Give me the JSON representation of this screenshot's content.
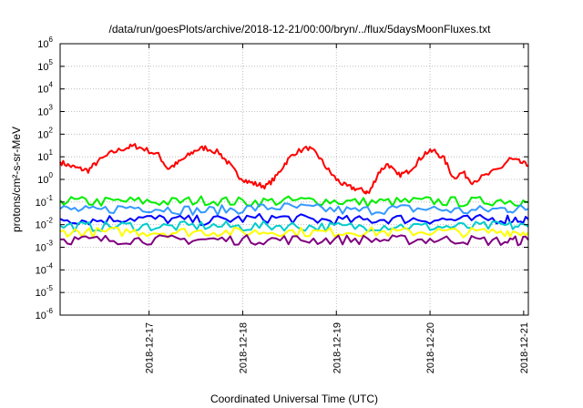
{
  "chart_data": {
    "type": "line",
    "title": "/data/run/goesPlots/archive/2018-12-21/00:00/bryn/../flux/5daysMoonFluxes.txt",
    "xlabel": "Coordinated Universal Time (UTC)",
    "ylabel": "protons/cm²-s-sr-MeV",
    "y_scale": "log",
    "ylim": [
      1e-06,
      1000000.0
    ],
    "xlim_days": [
      16.05,
      21.05
    ],
    "x_ticks": [
      {
        "day": 17,
        "label": "2018-12-17"
      },
      {
        "day": 18,
        "label": "2018-12-18"
      },
      {
        "day": 19,
        "label": "2018-12-19"
      },
      {
        "day": 20,
        "label": "2018-12-20"
      },
      {
        "day": 21,
        "label": "2018-12-21"
      }
    ],
    "y_ticks": [
      {
        "base": "10",
        "exp": "-6"
      },
      {
        "base": "10",
        "exp": "-5"
      },
      {
        "base": "10",
        "exp": "-4"
      },
      {
        "base": "10",
        "exp": "-3"
      },
      {
        "base": "10",
        "exp": "-2"
      },
      {
        "base": "10",
        "exp": "-1"
      },
      {
        "base": "10",
        "exp": "0"
      },
      {
        "base": "10",
        "exp": "1"
      },
      {
        "base": "10",
        "exp": "2"
      },
      {
        "base": "10",
        "exp": "3"
      },
      {
        "base": "10",
        "exp": "4"
      },
      {
        "base": "10",
        "exp": "5"
      },
      {
        "base": "10",
        "exp": "6"
      }
    ],
    "grid": true,
    "series": [
      {
        "color": "#ff0000",
        "x": [
          16.05,
          16.15,
          16.25,
          16.35,
          16.45,
          16.6,
          16.75,
          16.85,
          16.95,
          17.1,
          17.2,
          17.3,
          17.4,
          17.5,
          17.6,
          17.75,
          17.85,
          17.95,
          18.05,
          18.15,
          18.25,
          18.35,
          18.45,
          18.55,
          18.7,
          18.8,
          18.9,
          19.0,
          19.1,
          19.2,
          19.3,
          19.35,
          19.45,
          19.55,
          19.65,
          19.75,
          19.85,
          19.95,
          20.05,
          20.15,
          20.25,
          20.35,
          20.45,
          20.6,
          20.75,
          20.85,
          20.95,
          21.05
        ],
        "values": [
          6,
          4,
          3,
          2.5,
          6,
          15,
          25,
          30,
          22,
          12,
          3,
          5,
          10,
          20,
          25,
          15,
          5,
          1.5,
          0.8,
          0.6,
          0.5,
          1.2,
          5,
          15,
          25,
          12,
          3,
          1,
          0.5,
          0.4,
          0.3,
          0.25,
          2,
          5,
          1.5,
          2,
          5,
          15,
          18,
          8,
          1.2,
          2,
          0.8,
          1.5,
          3,
          8,
          6,
          4
        ]
      },
      {
        "color": "#00ee00",
        "x": [
          16.05,
          16.4,
          16.8,
          17.2,
          17.6,
          18.0,
          18.4,
          18.8,
          19.2,
          19.6,
          20.0,
          20.4,
          20.8,
          21.05
        ],
        "values": [
          0.12,
          0.1,
          0.11,
          0.1,
          0.12,
          0.1,
          0.11,
          0.12,
          0.1,
          0.1,
          0.11,
          0.1,
          0.12,
          0.1
        ]
      },
      {
        "color": "#3399ff",
        "x": [
          16.05,
          16.4,
          16.8,
          17.2,
          17.6,
          18.0,
          18.4,
          18.8,
          19.2,
          19.6,
          20.0,
          20.4,
          20.8,
          21.05
        ],
        "values": [
          0.05,
          0.04,
          0.06,
          0.05,
          0.04,
          0.05,
          0.06,
          0.05,
          0.04,
          0.05,
          0.05,
          0.04,
          0.05,
          0.05
        ]
      },
      {
        "color": "#0000ff",
        "x": [
          16.05,
          16.4,
          16.8,
          17.2,
          17.6,
          18.0,
          18.4,
          18.8,
          19.2,
          19.6,
          20.0,
          20.4,
          20.8,
          21.05
        ],
        "values": [
          0.018,
          0.015,
          0.02,
          0.017,
          0.015,
          0.018,
          0.02,
          0.016,
          0.015,
          0.018,
          0.017,
          0.016,
          0.018,
          0.017
        ]
      },
      {
        "color": "#00cccc",
        "x": [
          16.05,
          16.4,
          16.8,
          17.2,
          17.6,
          18.0,
          18.4,
          18.8,
          19.2,
          19.6,
          20.0,
          20.4,
          20.8,
          21.05
        ],
        "values": [
          0.009,
          0.008,
          0.009,
          0.008,
          0.009,
          0.008,
          0.009,
          0.008,
          0.008,
          0.009,
          0.008,
          0.008,
          0.009,
          0.008
        ]
      },
      {
        "color": "#ffff00",
        "x": [
          16.05,
          16.4,
          16.8,
          17.2,
          17.6,
          18.0,
          18.4,
          18.8,
          19.2,
          19.6,
          20.0,
          20.4,
          20.8,
          21.05
        ],
        "values": [
          0.005,
          0.0045,
          0.005,
          0.0045,
          0.005,
          0.0045,
          0.005,
          0.0045,
          0.005,
          0.0045,
          0.005,
          0.0045,
          0.005,
          0.0045
        ]
      },
      {
        "color": "#800080",
        "x": [
          16.05,
          16.4,
          16.8,
          17.2,
          17.6,
          18.0,
          18.4,
          18.8,
          19.2,
          19.6,
          20.0,
          20.4,
          20.8,
          21.05
        ],
        "values": [
          0.0022,
          0.0021,
          0.0022,
          0.0021,
          0.0022,
          0.0021,
          0.0022,
          0.0021,
          0.0022,
          0.0021,
          0.0022,
          0.0021,
          0.0018,
          0.0021
        ]
      }
    ]
  }
}
